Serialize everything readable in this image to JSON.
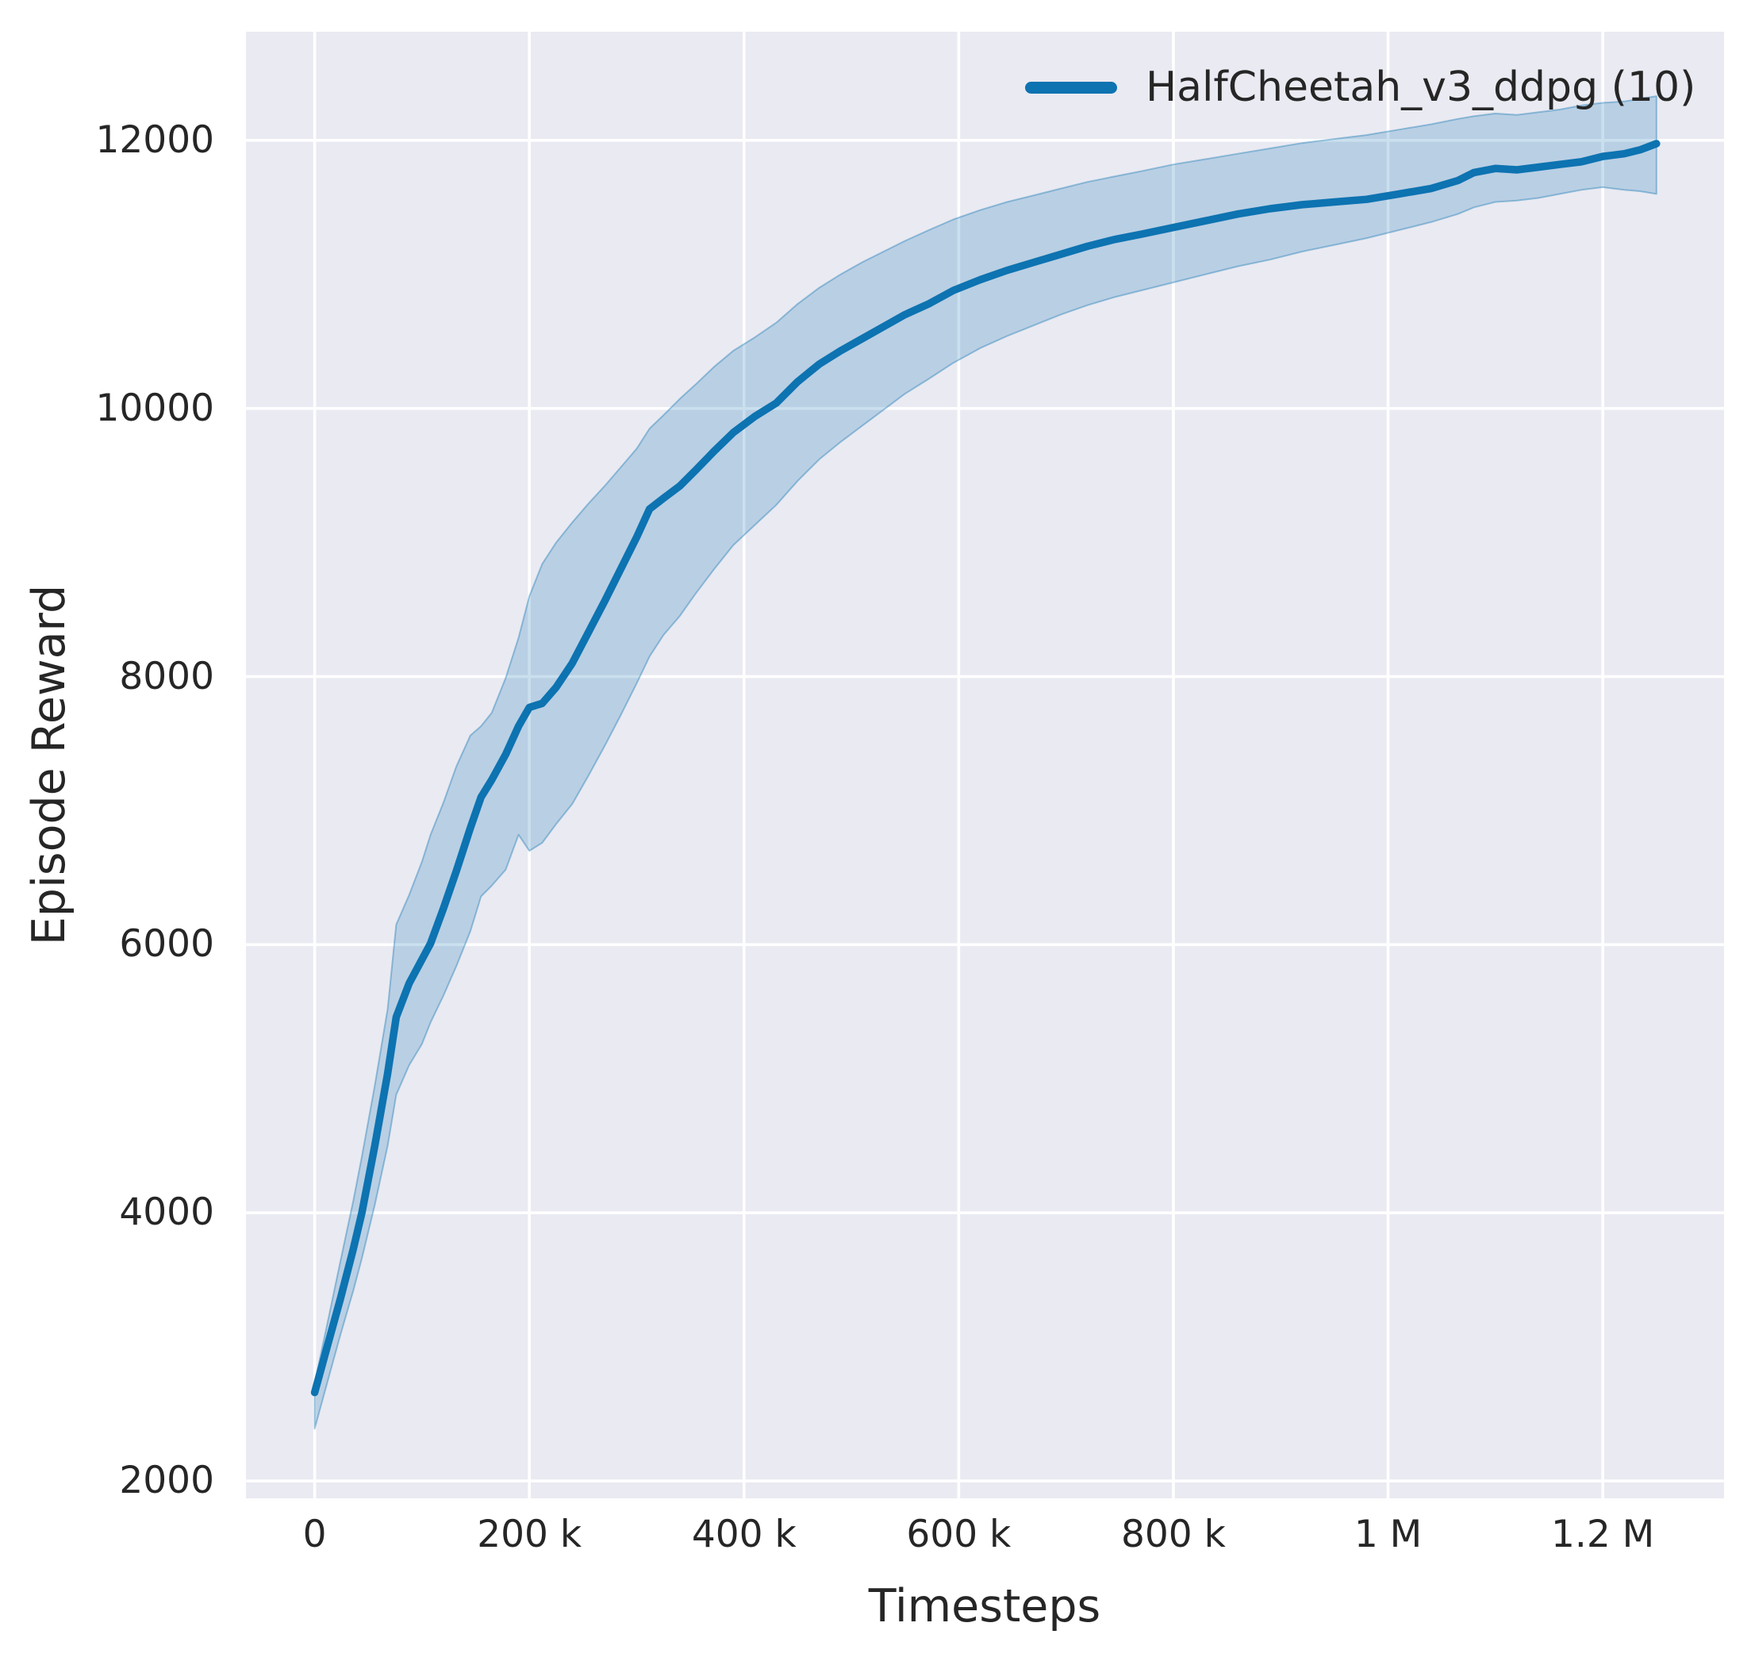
{
  "figure": {
    "background": "#ffffff",
    "plot_background": "#eaeaf2",
    "grid_color": "#ffffff",
    "text_color": "#262626"
  },
  "legend": {
    "label": "HalfCheetah_v3_ddpg (10)",
    "position": "upper right"
  },
  "chart_data": {
    "type": "line",
    "title": "",
    "xlabel": "Timesteps",
    "ylabel": "Episode Reward",
    "xlim": [
      -64000,
      1313000
    ],
    "ylim": [
      1870,
      12810
    ],
    "grid": true,
    "legend_position": "upper right",
    "xticks": {
      "values": [
        0,
        200000,
        400000,
        600000,
        800000,
        1000000,
        1200000
      ],
      "labels": [
        "0",
        "200 k",
        "400 k",
        "600 k",
        "800 k",
        "1 M",
        "1.2 M"
      ]
    },
    "yticks": {
      "values": [
        12000,
        10000,
        8000,
        6000,
        4000,
        2000
      ],
      "labels": [
        "12000",
        "10000",
        "8000",
        "6000",
        "4000",
        "2000"
      ]
    },
    "series": [
      {
        "name": "HalfCheetah_v3_ddpg (10)",
        "color": "#0d73b1",
        "band_fill_color": "#0d73b1",
        "band_fill_opacity": 0.22,
        "band_edge_opacity": 0.38,
        "x": [
          0,
          12000,
          24000,
          36000,
          44000,
          56000,
          68000,
          76000,
          88000,
          100000,
          108000,
          120000,
          132000,
          145000,
          155000,
          165000,
          178000,
          190000,
          200000,
          212000,
          225000,
          240000,
          255000,
          270000,
          285000,
          300000,
          312000,
          325000,
          340000,
          355000,
          372000,
          390000,
          410000,
          430000,
          450000,
          470000,
          490000,
          510000,
          530000,
          550000,
          572000,
          595000,
          620000,
          645000,
          670000,
          695000,
          720000,
          745000,
          770000,
          800000,
          830000,
          860000,
          890000,
          920000,
          950000,
          980000,
          1010000,
          1040000,
          1065000,
          1080000,
          1100000,
          1120000,
          1140000,
          1160000,
          1180000,
          1200000,
          1220000,
          1235000,
          1250000
        ],
        "y": [
          2660,
          3010,
          3360,
          3730,
          4000,
          4500,
          5040,
          5460,
          5710,
          5890,
          6010,
          6270,
          6550,
          6870,
          7100,
          7230,
          7420,
          7630,
          7770,
          7800,
          7920,
          8100,
          8330,
          8560,
          8800,
          9040,
          9250,
          9330,
          9420,
          9540,
          9680,
          9820,
          9940,
          10040,
          10200,
          10330,
          10430,
          10520,
          10610,
          10700,
          10780,
          10880,
          10960,
          11030,
          11090,
          11150,
          11210,
          11260,
          11300,
          11350,
          11400,
          11450,
          11490,
          11520,
          11540,
          11560,
          11600,
          11640,
          11700,
          11760,
          11790,
          11780,
          11800,
          11820,
          11840,
          11880,
          11900,
          11930,
          11975
        ],
        "band_lower": [
          2390,
          2740,
          3090,
          3420,
          3660,
          4060,
          4500,
          4880,
          5100,
          5260,
          5420,
          5620,
          5840,
          6100,
          6360,
          6440,
          6560,
          6820,
          6700,
          6760,
          6900,
          7050,
          7260,
          7480,
          7710,
          7950,
          8150,
          8310,
          8450,
          8620,
          8800,
          8980,
          9130,
          9280,
          9460,
          9620,
          9750,
          9870,
          9990,
          10110,
          10220,
          10340,
          10450,
          10540,
          10620,
          10700,
          10770,
          10830,
          10880,
          10940,
          11000,
          11060,
          11110,
          11170,
          11220,
          11270,
          11330,
          11390,
          11450,
          11500,
          11540,
          11550,
          11570,
          11600,
          11630,
          11650,
          11630,
          11620,
          11600
        ],
        "band_upper": [
          2730,
          3180,
          3640,
          4090,
          4420,
          4950,
          5520,
          6150,
          6370,
          6620,
          6820,
          7060,
          7330,
          7560,
          7630,
          7730,
          7990,
          8290,
          8600,
          8840,
          9000,
          9150,
          9290,
          9420,
          9560,
          9700,
          9850,
          9950,
          10070,
          10180,
          10310,
          10430,
          10530,
          10640,
          10780,
          10900,
          11000,
          11090,
          11170,
          11250,
          11330,
          11410,
          11480,
          11540,
          11590,
          11640,
          11690,
          11730,
          11770,
          11820,
          11860,
          11900,
          11940,
          11980,
          12010,
          12040,
          12080,
          12120,
          12160,
          12180,
          12200,
          12190,
          12210,
          12230,
          12260,
          12280,
          12290,
          12310,
          12330
        ]
      }
    ]
  }
}
